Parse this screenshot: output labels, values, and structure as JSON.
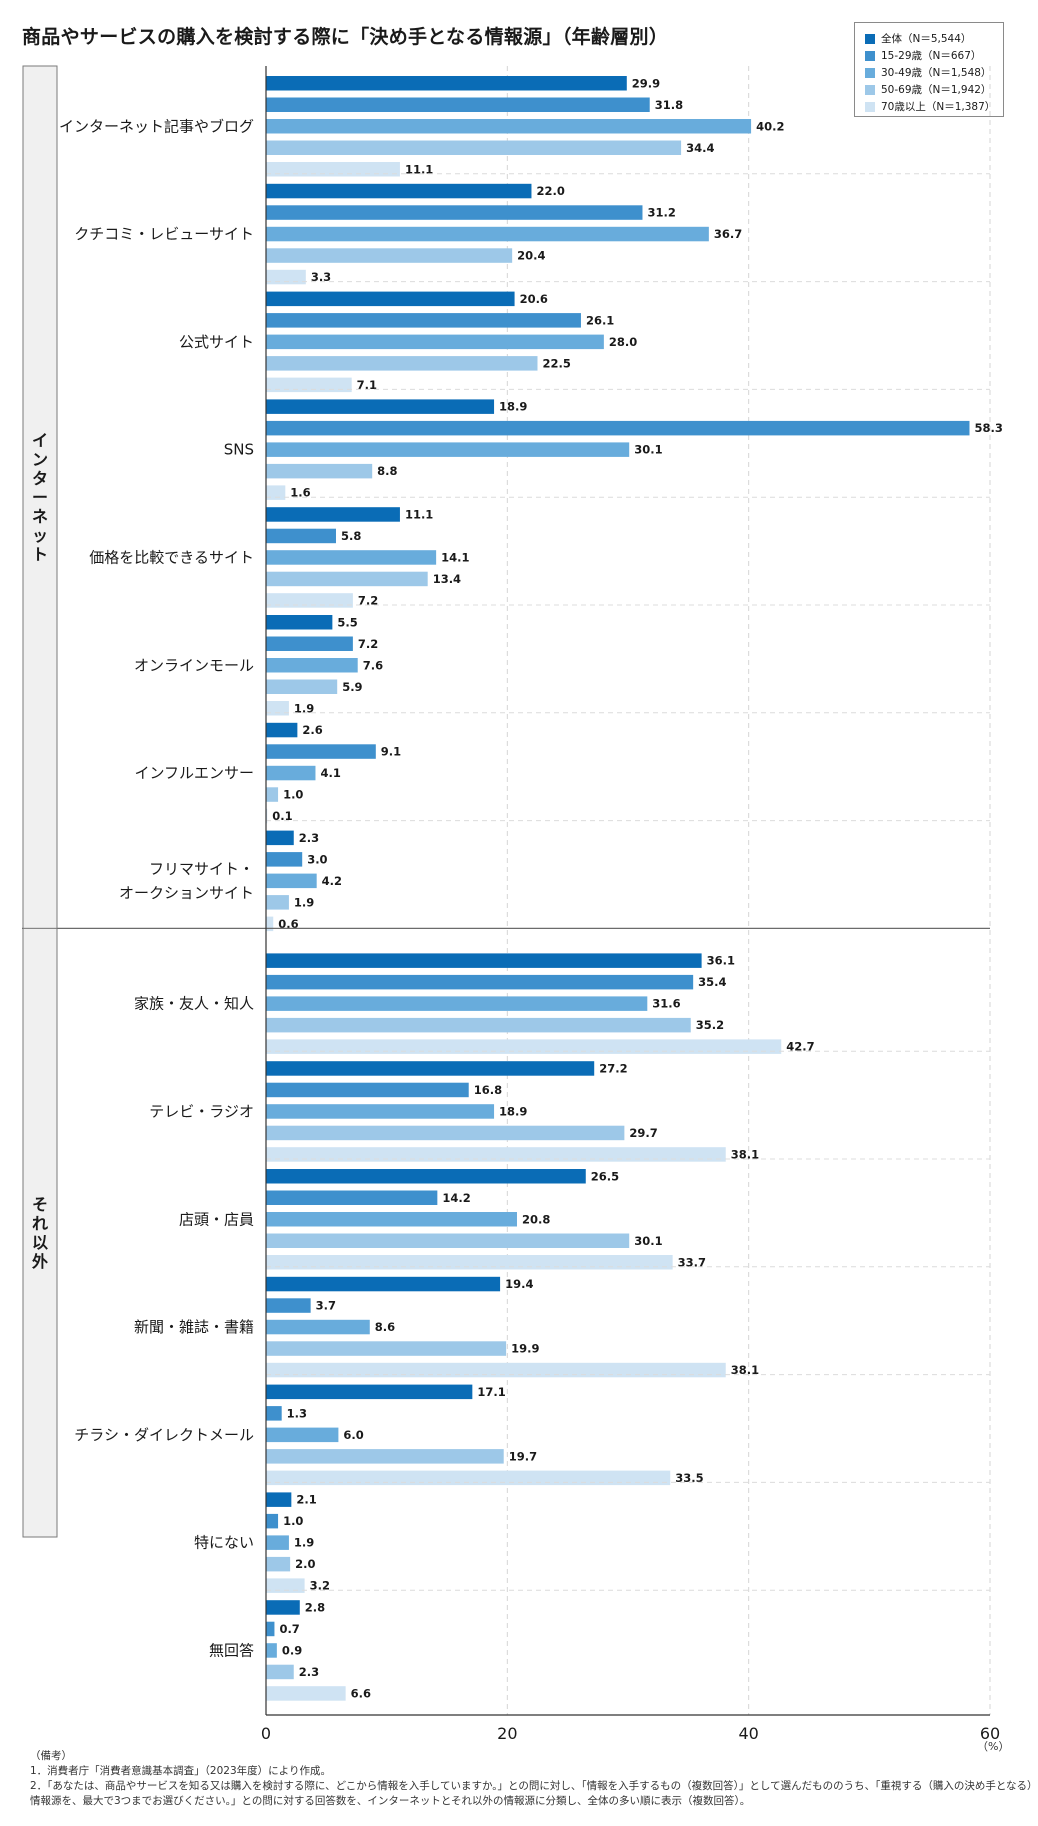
{
  "title": "商品やサービスの購入を検討する際に「決め手となる情報源」（年齢層別）",
  "legend": [
    {
      "label": "全体（N＝5,544）",
      "color": "#0a6cb6"
    },
    {
      "label": "15-29歳（N＝667）",
      "color": "#3e90cd"
    },
    {
      "label": "30-49歳（N＝1,548）",
      "color": "#68acdc"
    },
    {
      "label": "50-69歳（N＝1,942）",
      "color": "#9dc8e8"
    },
    {
      "label": "70歳以上（N＝1,387）",
      "color": "#cfe3f3"
    }
  ],
  "unit": "（%）",
  "notes": [
    "（備考）",
    "1．消費者庁「消費者意識基本調査」（2023年度）により作成。",
    "2．「あなたは、商品やサービスを知る又は購入を検討する際に、どこから情報を入手していますか。」との問に対し、「情報を入手するもの（複数回答）」として選んだもののうち、「重視する（購入の決め手となる）",
    "情報源を、最大で3つまでお選びください。」との問に対する回答数を、インターネットとそれ以外の情報源に分類し、全体の多い順に表示（複数回答）。"
  ],
  "chart_data": {
    "type": "bar",
    "orientation": "horizontal",
    "xlim": [
      0,
      60
    ],
    "xticks": [
      0,
      20,
      40,
      60
    ],
    "grid": true,
    "legend_position": "top-right",
    "series_names": [
      "全体（N＝5,544）",
      "15-29歳（N＝667）",
      "30-49歳（N＝1,548）",
      "50-69歳（N＝1,942）",
      "70歳以上（N＝1,387）"
    ],
    "groups": [
      {
        "name": "インターネット",
        "categories": [
          {
            "label": [
              "インターネット記事やブログ"
            ],
            "values": [
              29.9,
              31.8,
              40.2,
              34.4,
              11.1
            ]
          },
          {
            "label": [
              "クチコミ・レビューサイト"
            ],
            "values": [
              22.0,
              31.2,
              36.7,
              20.4,
              3.3
            ]
          },
          {
            "label": [
              "公式サイト"
            ],
            "values": [
              20.6,
              26.1,
              28.0,
              22.5,
              7.1
            ]
          },
          {
            "label": [
              "SNS"
            ],
            "values": [
              18.9,
              58.3,
              30.1,
              8.8,
              1.6
            ]
          },
          {
            "label": [
              "価格を比較できるサイト"
            ],
            "values": [
              11.1,
              5.8,
              14.1,
              13.4,
              7.2
            ]
          },
          {
            "label": [
              "オンラインモール"
            ],
            "values": [
              5.5,
              7.2,
              7.6,
              5.9,
              1.9
            ]
          },
          {
            "label": [
              "インフルエンサー"
            ],
            "values": [
              2.6,
              9.1,
              4.1,
              1.0,
              0.1
            ]
          },
          {
            "label": [
              "フリマサイト・",
              "オークションサイト"
            ],
            "values": [
              2.3,
              3.0,
              4.2,
              1.9,
              0.6
            ]
          }
        ]
      },
      {
        "name": "それ以外",
        "categories": [
          {
            "label": [
              "家族・友人・知人"
            ],
            "values": [
              36.1,
              35.4,
              31.6,
              35.2,
              42.7
            ]
          },
          {
            "label": [
              "テレビ・ラジオ"
            ],
            "values": [
              27.2,
              16.8,
              18.9,
              29.7,
              38.1
            ]
          },
          {
            "label": [
              "店頭・店員"
            ],
            "values": [
              26.5,
              14.2,
              20.8,
              30.1,
              33.7
            ]
          },
          {
            "label": [
              "新聞・雑誌・書籍"
            ],
            "values": [
              19.4,
              3.7,
              8.6,
              19.9,
              38.1
            ]
          },
          {
            "label": [
              "チラシ・ダイレクトメール"
            ],
            "values": [
              17.1,
              1.3,
              6.0,
              19.7,
              33.5
            ]
          },
          {
            "label": [
              "特にない"
            ],
            "values": [
              2.1,
              1.0,
              1.9,
              2.0,
              3.2
            ]
          },
          {
            "label": [
              "無回答"
            ],
            "values": [
              2.8,
              0.7,
              0.9,
              2.3,
              6.6
            ]
          }
        ]
      }
    ]
  }
}
